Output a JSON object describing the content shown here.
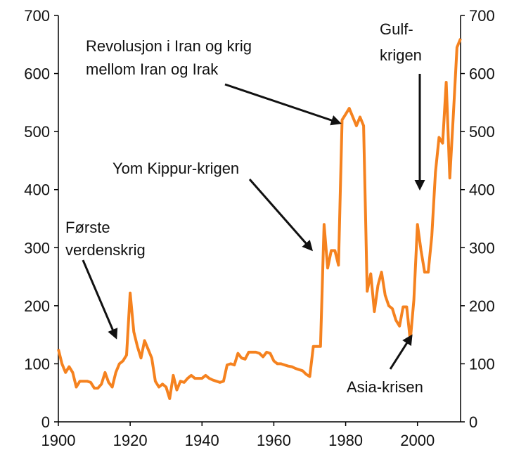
{
  "chart_data": {
    "type": "line",
    "x": [
      1900,
      1901,
      1902,
      1903,
      1904,
      1905,
      1906,
      1907,
      1908,
      1909,
      1910,
      1911,
      1912,
      1913,
      1914,
      1915,
      1916,
      1917,
      1918,
      1919,
      1920,
      1921,
      1922,
      1923,
      1924,
      1925,
      1926,
      1927,
      1928,
      1929,
      1930,
      1931,
      1932,
      1933,
      1934,
      1935,
      1936,
      1937,
      1938,
      1939,
      1940,
      1941,
      1942,
      1943,
      1944,
      1945,
      1946,
      1947,
      1948,
      1949,
      1950,
      1951,
      1952,
      1953,
      1954,
      1955,
      1956,
      1957,
      1958,
      1959,
      1960,
      1961,
      1962,
      1963,
      1964,
      1965,
      1966,
      1967,
      1968,
      1969,
      1970,
      1971,
      1972,
      1973,
      1974,
      1975,
      1976,
      1977,
      1978,
      1979,
      1980,
      1981,
      1982,
      1983,
      1984,
      1985,
      1986,
      1987,
      1988,
      1989,
      1990,
      1991,
      1992,
      1993,
      1994,
      1995,
      1996,
      1997,
      1998,
      1999,
      2000,
      2001,
      2002,
      2003,
      2004,
      2005,
      2006,
      2007,
      2008,
      2009,
      2010,
      2011,
      2012
    ],
    "series": [
      {
        "color": "#f5821f",
        "values": [
          125,
          100,
          85,
          95,
          85,
          60,
          70,
          70,
          70,
          68,
          58,
          58,
          65,
          85,
          68,
          60,
          85,
          100,
          105,
          115,
          222,
          155,
          130,
          110,
          140,
          125,
          110,
          70,
          60,
          65,
          60,
          40,
          80,
          55,
          70,
          68,
          75,
          80,
          75,
          75,
          75,
          80,
          75,
          72,
          70,
          68,
          70,
          98,
          100,
          98,
          118,
          110,
          108,
          120,
          120,
          120,
          118,
          112,
          120,
          118,
          105,
          100,
          100,
          98,
          96,
          95,
          92,
          90,
          88,
          82,
          78,
          130,
          130,
          130,
          340,
          265,
          295,
          295,
          270,
          520,
          530,
          540,
          525,
          510,
          525,
          510,
          225,
          255,
          190,
          235,
          258,
          218,
          200,
          195,
          175,
          165,
          198,
          198,
          140,
          210,
          340,
          295,
          258,
          258,
          320,
          430,
          490,
          480,
          585,
          420,
          530,
          645,
          660
        ]
      }
    ],
    "xlim": [
      1900,
      2012
    ],
    "xticks": [
      1900,
      1920,
      1940,
      1960,
      1980,
      2000
    ],
    "ylim": [
      0,
      700
    ],
    "yticks": [
      0,
      100,
      200,
      300,
      400,
      500,
      600,
      700
    ],
    "y2lim": [
      0,
      700
    ],
    "y2ticks": [
      0,
      100,
      200,
      300,
      400,
      500,
      600,
      700
    ],
    "annotations": [
      {
        "lines": [
          "Første",
          "verdenskrig"
        ]
      },
      {
        "lines": [
          "Yom Kippur-krigen"
        ]
      },
      {
        "lines": [
          "Revolusjon i Iran og krig",
          "mellom Iran og Irak"
        ]
      },
      {
        "lines": [
          "Gulf-",
          "krigen"
        ]
      },
      {
        "lines": [
          "Asia-krisen"
        ]
      }
    ]
  }
}
